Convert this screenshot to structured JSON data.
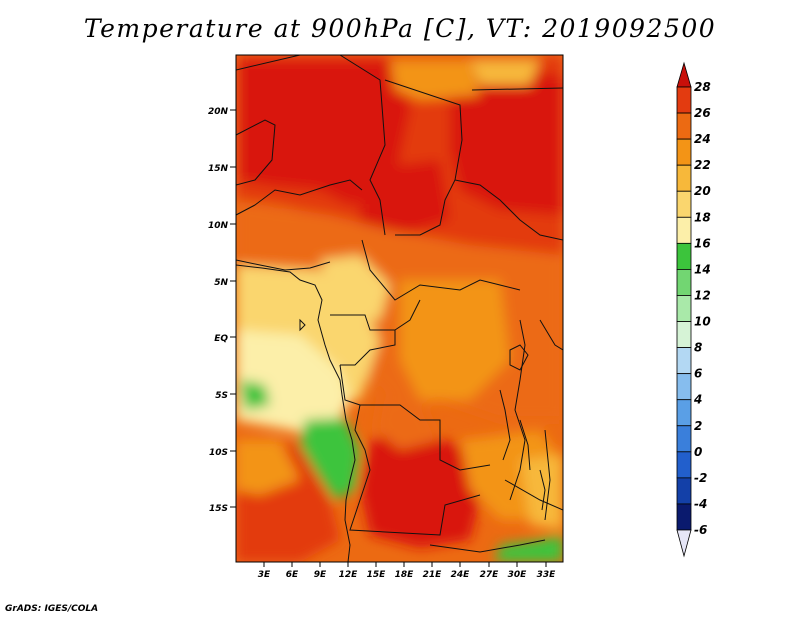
{
  "title": "Temperature at 900hPa [C], VT: 2019092500",
  "credit": "GrADS: IGES/COLA",
  "map": {
    "lat_labels": [
      "20N",
      "15N",
      "10N",
      "5N",
      "EQ",
      "5S",
      "10S",
      "15S"
    ],
    "lon_labels": [
      "3E",
      "6E",
      "9E",
      "12E",
      "15E",
      "18E",
      "21E",
      "24E",
      "27E",
      "30E",
      "33E"
    ],
    "lat_range": [
      -19,
      25
    ],
    "lon_range": [
      0,
      35
    ]
  },
  "colorbar": {
    "levels": [
      {
        "value": "28",
        "color": "#d9180d"
      },
      {
        "value": "26",
        "color": "#e33b10"
      },
      {
        "value": "24",
        "color": "#ec6a12"
      },
      {
        "value": "22",
        "color": "#f39416"
      },
      {
        "value": "20",
        "color": "#f7b83a"
      },
      {
        "value": "18",
        "color": "#fad66e"
      },
      {
        "value": "16",
        "color": "#fcefa9"
      },
      {
        "value": "14",
        "color": "#3cc43c"
      },
      {
        "value": "12",
        "color": "#72d672"
      },
      {
        "value": "10",
        "color": "#a9e9a9"
      },
      {
        "value": "8",
        "color": "#d6f3d6"
      },
      {
        "value": "6",
        "color": "#b3d8f3"
      },
      {
        "value": "4",
        "color": "#86bdee"
      },
      {
        "value": "2",
        "color": "#5a9fe6"
      },
      {
        "value": "0",
        "color": "#3a7fdb"
      },
      {
        "value": "-2",
        "color": "#225fcc"
      },
      {
        "value": "-4",
        "color": "#1340a8"
      },
      {
        "value": "-6",
        "color": "#0a1a6e"
      }
    ],
    "top_arrow_color": "#c8100a",
    "bottom_arrow_color": "#e6e6f7"
  }
}
